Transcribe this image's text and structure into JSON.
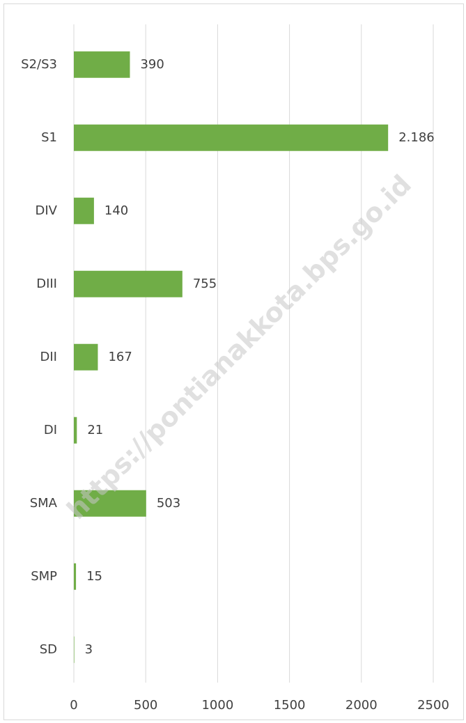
{
  "chart_data": {
    "type": "bar",
    "orientation": "horizontal",
    "categories": [
      "S2/S3",
      "S1",
      "DIV",
      "DIII",
      "DII",
      "DI",
      "SMA",
      "SMP",
      "SD"
    ],
    "values": [
      390,
      2186,
      140,
      755,
      167,
      21,
      503,
      15,
      3
    ],
    "value_labels": [
      "390",
      "2.186",
      "140",
      "755",
      "167",
      "21",
      "503",
      "15",
      "3"
    ],
    "color": "#70ad47",
    "xlim": [
      0,
      2500
    ],
    "xticks": [
      0,
      500,
      1000,
      1500,
      2000,
      2500
    ],
    "grid": true,
    "watermark": "https://pontianakkota.bps.go.id"
  }
}
